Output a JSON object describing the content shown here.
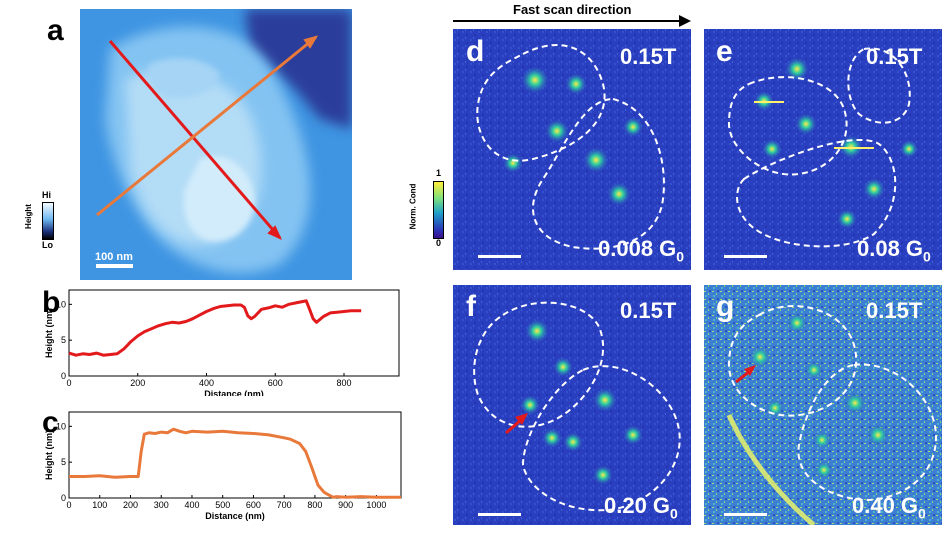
{
  "panels": {
    "a": {
      "label": "a",
      "scalebar": "100 nm",
      "colorbar": {
        "title": "Height",
        "hi": "Hi",
        "lo": "Lo"
      }
    },
    "b": {
      "label": "b"
    },
    "c": {
      "label": "c"
    },
    "d": {
      "label": "d",
      "field": "0.15T",
      "cond_value": "0.008 G",
      "cond_sub": "0"
    },
    "e": {
      "label": "e",
      "field": "0.15T",
      "cond_value": "0.08 G",
      "cond_sub": "0"
    },
    "f": {
      "label": "f",
      "field": "0.15T",
      "cond_value": "0.20 G",
      "cond_sub": "0"
    },
    "g": {
      "label": "g",
      "field": "0.15T",
      "cond_value": "0.40 G",
      "cond_sub": "0"
    }
  },
  "scan_direction": "Fast scan direction",
  "norm_colorbar": {
    "title": "Norm. Cond",
    "max": "1",
    "min": "0"
  },
  "colors": {
    "red_profile": "#e31a1c",
    "orange_profile": "#e8793a",
    "arrow_red": "#e31a1c"
  },
  "chart_data": [
    {
      "type": "line",
      "panel": "b",
      "title": "",
      "xlabel": "Distance (nm)",
      "ylabel": "Height (nm)",
      "xlim": [
        0,
        960
      ],
      "ylim": [
        0,
        12
      ],
      "xticks": [
        "0",
        "200",
        "400",
        "600",
        "800"
      ],
      "yticks": [
        "0",
        "5",
        "10"
      ],
      "series": [
        {
          "name": "red line profile",
          "color": "#e31a1c",
          "x": [
            0,
            20,
            40,
            60,
            80,
            100,
            120,
            140,
            160,
            180,
            200,
            220,
            240,
            260,
            280,
            300,
            320,
            340,
            360,
            380,
            400,
            420,
            440,
            460,
            480,
            500,
            510,
            520,
            530,
            540,
            560,
            580,
            600,
            620,
            640,
            660,
            680,
            690,
            700,
            710,
            720,
            740,
            760,
            780,
            800,
            820,
            840,
            850
          ],
          "y": [
            3.2,
            2.9,
            3.1,
            3.0,
            3.2,
            2.9,
            3.0,
            3.1,
            3.8,
            4.8,
            5.6,
            6.2,
            6.6,
            7.0,
            7.3,
            7.5,
            7.4,
            7.6,
            8.0,
            8.5,
            9.0,
            9.4,
            9.7,
            9.8,
            9.9,
            9.9,
            9.6,
            8.4,
            8.0,
            8.3,
            9.3,
            9.5,
            9.8,
            9.6,
            10.0,
            10.2,
            10.4,
            10.5,
            9.3,
            8.0,
            7.5,
            8.3,
            8.8,
            8.9,
            9.0,
            9.1,
            9.1,
            9.1
          ]
        }
      ]
    },
    {
      "type": "line",
      "panel": "c",
      "title": "",
      "xlabel": "Distance (nm)",
      "ylabel": "Height (nm)",
      "xlim": [
        0,
        1080
      ],
      "ylim": [
        0,
        12
      ],
      "xticks": [
        "0",
        "100",
        "200",
        "300",
        "400",
        "500",
        "600",
        "700",
        "800",
        "900",
        "1000"
      ],
      "yticks": [
        "0",
        "5",
        "10"
      ],
      "series": [
        {
          "name": "orange line profile",
          "color": "#e8793a",
          "x": [
            0,
            50,
            100,
            150,
            200,
            225,
            235,
            245,
            260,
            280,
            300,
            320,
            340,
            360,
            380,
            400,
            450,
            500,
            550,
            600,
            650,
            700,
            720,
            750,
            770,
            790,
            800,
            810,
            830,
            850,
            860,
            870,
            900,
            950,
            1000,
            1050,
            1080
          ],
          "y": [
            3.0,
            3.0,
            3.1,
            2.9,
            3.0,
            3.0,
            6.5,
            8.9,
            9.1,
            9.0,
            9.2,
            9.1,
            9.6,
            9.3,
            9.1,
            9.3,
            9.2,
            9.3,
            9.1,
            9.0,
            8.8,
            8.4,
            8.2,
            7.6,
            6.5,
            4.2,
            3.0,
            1.8,
            0.8,
            0.3,
            0.1,
            0.2,
            0.1,
            0.2,
            0.1,
            0.1,
            0.1
          ]
        }
      ]
    }
  ]
}
